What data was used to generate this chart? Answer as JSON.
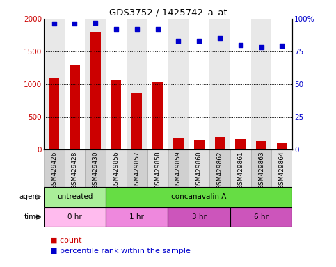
{
  "title": "GDS3752 / 1425742_a_at",
  "samples": [
    "GSM429426",
    "GSM429428",
    "GSM429430",
    "GSM429856",
    "GSM429857",
    "GSM429858",
    "GSM429859",
    "GSM429860",
    "GSM429862",
    "GSM429861",
    "GSM429863",
    "GSM429864"
  ],
  "counts": [
    1100,
    1300,
    1800,
    1060,
    860,
    1030,
    170,
    150,
    195,
    160,
    130,
    110
  ],
  "percentile": [
    96,
    96,
    97,
    92,
    92,
    92,
    83,
    83,
    85,
    80,
    78,
    79
  ],
  "bar_color": "#cc0000",
  "dot_color": "#0000cc",
  "ylim_left": [
    0,
    2000
  ],
  "ylim_right": [
    0,
    100
  ],
  "yticks_left": [
    0,
    500,
    1000,
    1500,
    2000
  ],
  "yticks_right": [
    0,
    25,
    50,
    75,
    100
  ],
  "ytick_labels_right": [
    "0",
    "25",
    "50",
    "75",
    "100%"
  ],
  "agent_labels": [
    {
      "text": "untreated",
      "start": 0,
      "end": 3,
      "color": "#aaee99"
    },
    {
      "text": "concanavalin A",
      "start": 3,
      "end": 12,
      "color": "#66dd44"
    }
  ],
  "time_labels": [
    {
      "text": "0 hr",
      "start": 0,
      "end": 3,
      "color": "#ffbbee"
    },
    {
      "text": "1 hr",
      "start": 3,
      "end": 6,
      "color": "#ee88dd"
    },
    {
      "text": "3 hr",
      "start": 6,
      "end": 9,
      "color": "#cc55bb"
    },
    {
      "text": "6 hr",
      "start": 9,
      "end": 12,
      "color": "#cc55bb"
    }
  ],
  "legend_count_color": "#cc0000",
  "legend_dot_color": "#0000cc",
  "bg_color": "#ffffff",
  "tick_label_color_left": "#cc0000",
  "tick_label_color_right": "#0000cc",
  "col_bg_even": "#e8e8e8",
  "col_bg_odd": "#ffffff"
}
